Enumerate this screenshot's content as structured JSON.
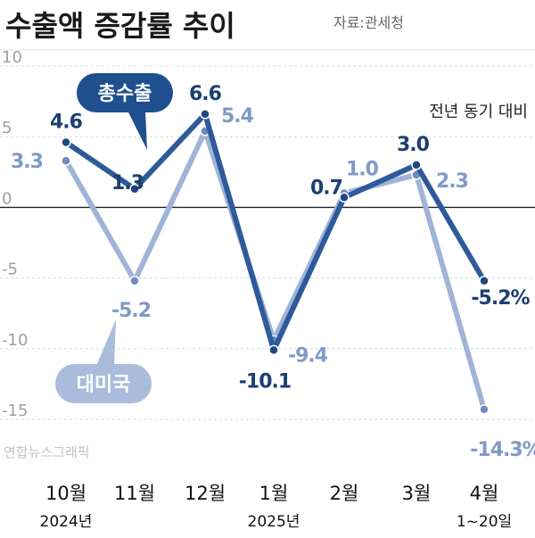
{
  "header": {
    "title": "수출액 증감률 추이",
    "source": "자료:관세청"
  },
  "credit": "연합뉴스그래픽",
  "colors": {
    "total": "#2e5a9a",
    "us": "#9fb4d6",
    "total_label": "#1b3f73",
    "us_label": "#7f9ac6",
    "grid": "#d4d9e0"
  },
  "chart_data": {
    "type": "line",
    "title": "수출액 증감률 추이",
    "subtitle": "전년 동기 대비",
    "categories": [
      "10월",
      "11월",
      "12월",
      "1월",
      "2월",
      "3월",
      "4월"
    ],
    "category_sublabels": [
      {
        "index": 0,
        "text": "2024년"
      },
      {
        "index": 3,
        "text": "2025년"
      },
      {
        "index": 6,
        "text": "1~20일"
      }
    ],
    "ylim": [
      -15,
      10
    ],
    "yticks": [
      10,
      5,
      0,
      -5,
      -10,
      -15
    ],
    "grid": true,
    "series": [
      {
        "name": "총수출",
        "values": [
          4.6,
          1.3,
          6.6,
          -10.1,
          0.7,
          3.0,
          -5.2
        ],
        "labels": [
          "4.6",
          "1.3",
          "6.6",
          "-10.1",
          "0.7",
          "3.0",
          "-5.2%"
        ]
      },
      {
        "name": "대미국",
        "values": [
          3.3,
          -5.2,
          5.4,
          -9.4,
          1.0,
          2.3,
          -14.3
        ],
        "labels": [
          "3.3",
          "-5.2",
          "5.4",
          "-9.4",
          "1.0",
          "2.3",
          "-14.3%"
        ]
      }
    ]
  }
}
